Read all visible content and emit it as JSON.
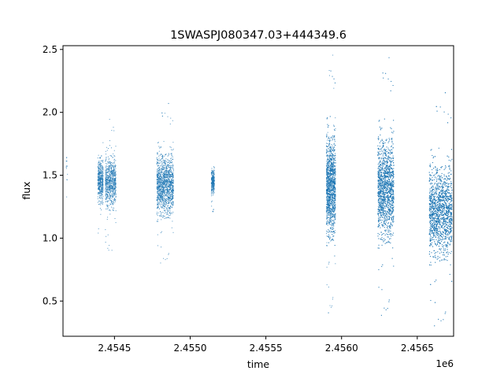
{
  "chart_data": {
    "type": "scatter",
    "title": "1SWASPJ080347.03+444349.6",
    "xlabel": "time",
    "ylabel": "flux",
    "x_offset_label": "1e6",
    "xlim": [
      2454160,
      2456740
    ],
    "ylim": [
      0.22,
      2.53
    ],
    "xticks": [
      2454500,
      2455000,
      2455500,
      2456000,
      2456500
    ],
    "xtick_labels": [
      "2.4545",
      "2.4550",
      "2.4555",
      "2.4560",
      "2.4565"
    ],
    "yticks": [
      0.5,
      1.0,
      1.5,
      2.0,
      2.5
    ],
    "ytick_labels": [
      "0.5",
      "1.0",
      "1.5",
      "2.0",
      "2.5"
    ],
    "grid": false,
    "marker_color": "#1f77b4",
    "series": [
      {
        "clusters": [
          {
            "x_range": [
              2454180,
              2454190
            ],
            "center": 1.52,
            "spread": 0.45,
            "count": 14
          },
          {
            "x_range": [
              2454390,
              2454425
            ],
            "center": 1.45,
            "spread": 0.45,
            "count": 450
          },
          {
            "x_range": [
              2454440,
              2454510
            ],
            "center": 1.45,
            "spread": 0.55,
            "count": 750
          },
          {
            "x_range": [
              2454780,
              2454890
            ],
            "center": 1.43,
            "spread": 0.65,
            "count": 1500
          },
          {
            "x_range": [
              2455140,
              2455160
            ],
            "center": 1.45,
            "spread": 0.26,
            "count": 280
          },
          {
            "x_range": [
              2455900,
              2455960
            ],
            "center": 1.42,
            "spread": 1.05,
            "count": 2000
          },
          {
            "x_range": [
              2456240,
              2456345
            ],
            "center": 1.4,
            "spread": 1.05,
            "count": 2600
          },
          {
            "x_range": [
              2456580,
              2456730
            ],
            "center": 1.22,
            "spread": 0.95,
            "count": 3000
          }
        ]
      }
    ]
  }
}
